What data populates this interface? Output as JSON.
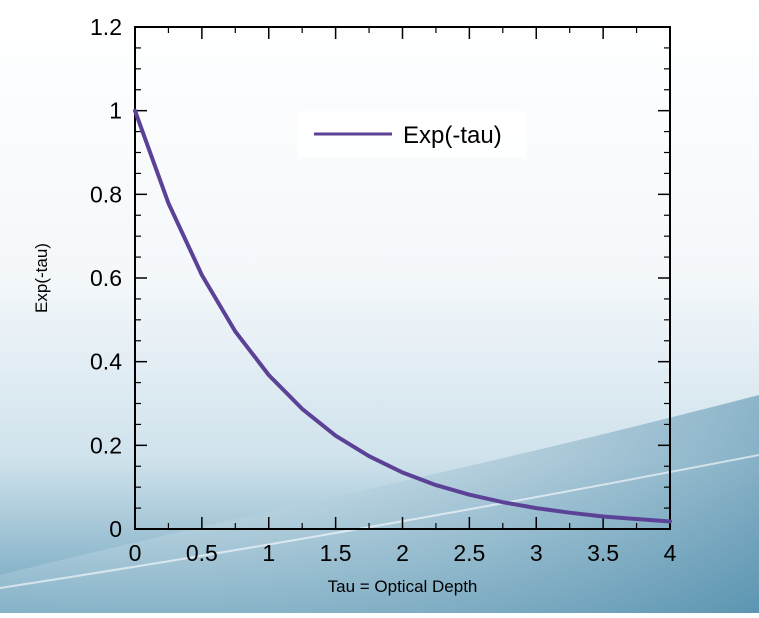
{
  "chart_data": {
    "type": "line",
    "title": "",
    "xlabel": "Tau = Optical Depth",
    "ylabel": "Exp(-tau)",
    "xlim": [
      0,
      4
    ],
    "ylim": [
      0,
      1.2
    ],
    "x_ticks": [
      "0",
      "0.5",
      "1",
      "1.5",
      "2",
      "2.5",
      "3",
      "3.5",
      "4"
    ],
    "y_ticks": [
      "0",
      "0.2",
      "0.4",
      "0.6",
      "0.8",
      "1",
      "1.2"
    ],
    "grid": false,
    "legend_position": "top-right",
    "series": [
      {
        "name": "Exp(-tau)",
        "color": "#5b4296",
        "x": [
          0,
          0.25,
          0.5,
          0.75,
          1,
          1.25,
          1.5,
          1.75,
          2,
          2.25,
          2.5,
          2.75,
          3,
          3.25,
          3.5,
          3.75,
          4
        ],
        "values": [
          1,
          0.779,
          0.607,
          0.472,
          0.368,
          0.287,
          0.223,
          0.174,
          0.135,
          0.105,
          0.082,
          0.064,
          0.05,
          0.039,
          0.03,
          0.024,
          0.018
        ]
      }
    ]
  }
}
